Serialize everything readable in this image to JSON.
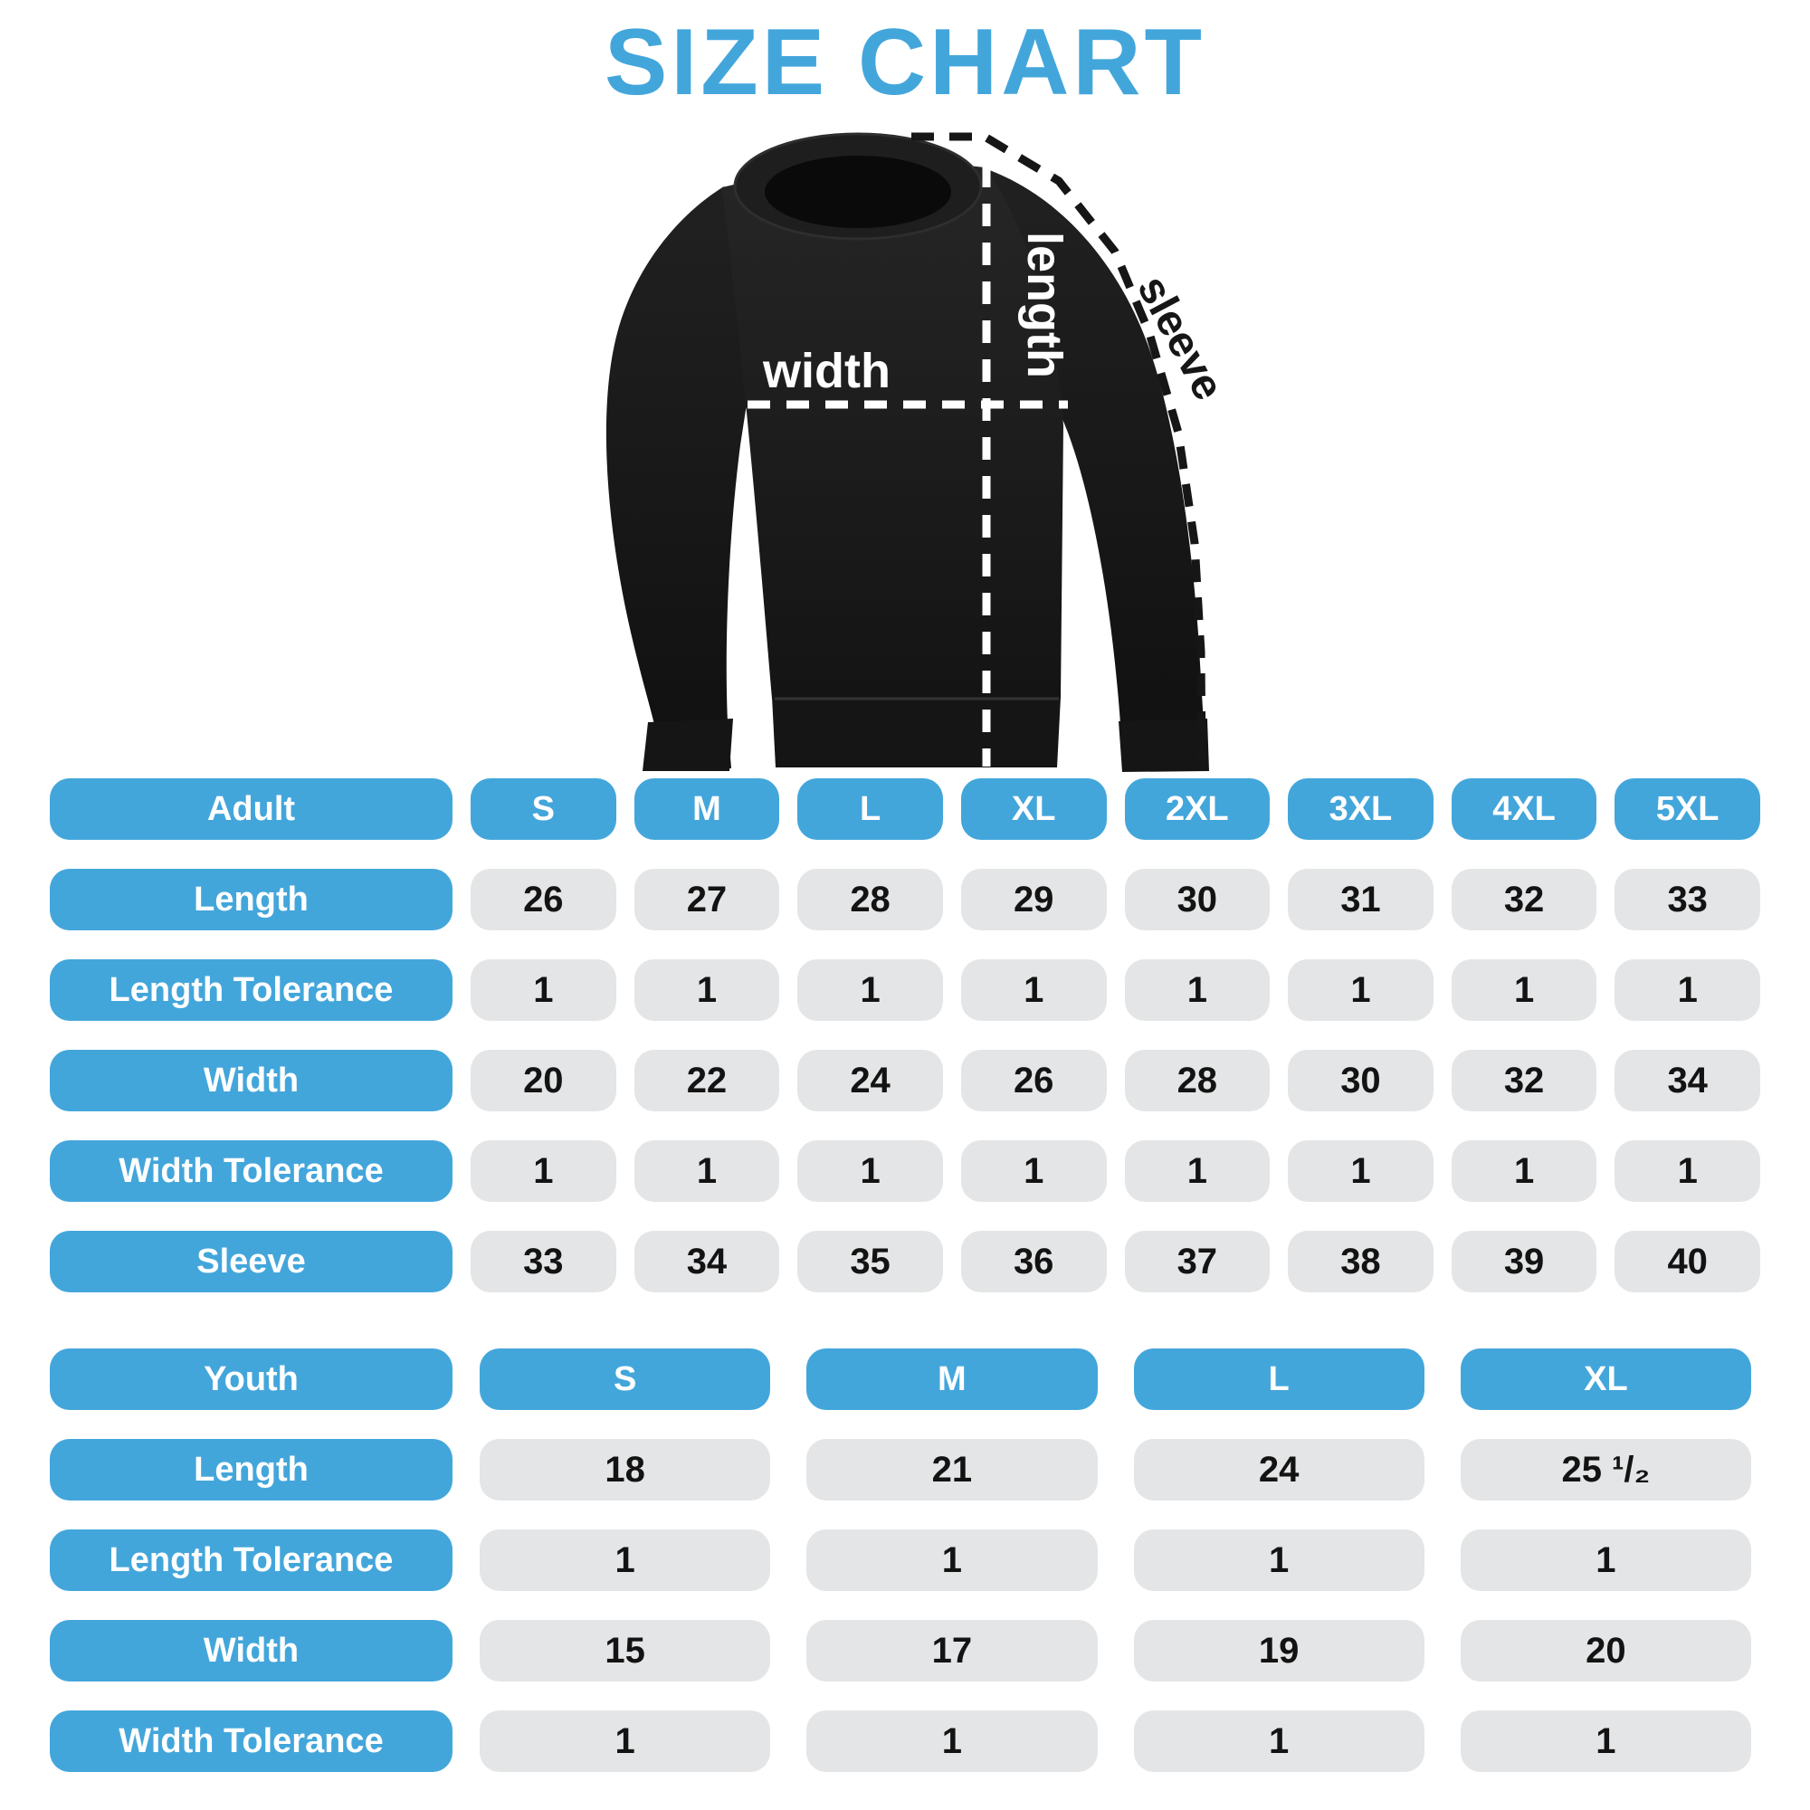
{
  "title": "SIZE CHART",
  "colors": {
    "accent": "#43A6DB",
    "cell_bg": "#E4E5E6",
    "ink": "#131313",
    "garment": "#1c1c1c",
    "annotation_dark": "#161616",
    "annotation_light": "#ffffff"
  },
  "diagram": {
    "garment": "black-crewneck-sweatshirt",
    "labels": {
      "length": "length",
      "width": "width",
      "sleeve": "sleeve"
    }
  },
  "tables": [
    {
      "id": "adult",
      "header": [
        "Adult",
        "S",
        "M",
        "L",
        "XL",
        "2XL",
        "3XL",
        "4XL",
        "5XL"
      ],
      "rows": [
        {
          "label": "Length",
          "values": [
            "26",
            "27",
            "28",
            "29",
            "30",
            "31",
            "32",
            "33"
          ]
        },
        {
          "label": "Length Tolerance",
          "values": [
            "1",
            "1",
            "1",
            "1",
            "1",
            "1",
            "1",
            "1"
          ]
        },
        {
          "label": "Width",
          "values": [
            "20",
            "22",
            "24",
            "26",
            "28",
            "30",
            "32",
            "34"
          ]
        },
        {
          "label": "Width Tolerance",
          "values": [
            "1",
            "1",
            "1",
            "1",
            "1",
            "1",
            "1",
            "1"
          ]
        },
        {
          "label": "Sleeve",
          "values": [
            "33",
            "34",
            "35",
            "36",
            "37",
            "38",
            "39",
            "40"
          ]
        }
      ]
    },
    {
      "id": "youth",
      "header": [
        "Youth",
        "S",
        "M",
        "L",
        "XL"
      ],
      "rows": [
        {
          "label": "Length",
          "values": [
            "18",
            "21",
            "24",
            "25 ¹/₂"
          ]
        },
        {
          "label": "Length Tolerance",
          "values": [
            "1",
            "1",
            "1",
            "1"
          ]
        },
        {
          "label": "Width",
          "values": [
            "15",
            "17",
            "19",
            "20"
          ]
        },
        {
          "label": "Width Tolerance",
          "values": [
            "1",
            "1",
            "1",
            "1"
          ]
        }
      ]
    }
  ]
}
